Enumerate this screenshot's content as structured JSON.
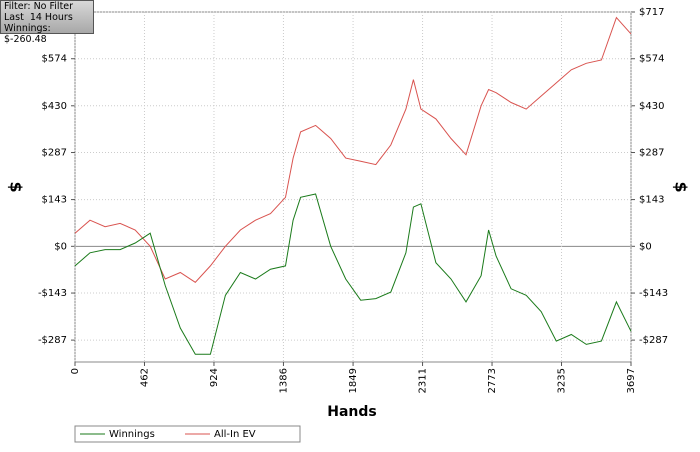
{
  "filter_box": {
    "lines": [
      "Filter: No Filter",
      "Last  14 Hours",
      "Winnings: $-260.48"
    ]
  },
  "chart_data": {
    "type": "line",
    "x_label": "Hands",
    "y_label": "$",
    "x": [
      0,
      100,
      200,
      300,
      400,
      500,
      600,
      700,
      800,
      900,
      1000,
      1100,
      1200,
      1300,
      1400,
      1450,
      1500,
      1600,
      1700,
      1800,
      1900,
      2000,
      2100,
      2200,
      2250,
      2300,
      2400,
      2500,
      2600,
      2700,
      2750,
      2800,
      2900,
      3000,
      3100,
      3200,
      3300,
      3400,
      3500,
      3600,
      3697
    ],
    "series": [
      {
        "name": "Winnings",
        "color": "#1a7a1a",
        "values": [
          -60,
          -20,
          -10,
          -10,
          10,
          40,
          -120,
          -250,
          -330,
          -330,
          -150,
          -80,
          -100,
          -70,
          -60,
          80,
          150,
          160,
          0,
          -100,
          -165,
          -160,
          -140,
          -20,
          120,
          130,
          -50,
          -100,
          -170,
          -90,
          50,
          -30,
          -130,
          -150,
          -200,
          -290,
          -270,
          -300,
          -290,
          -170,
          -260
        ]
      },
      {
        "name": "All-In EV",
        "color": "#d9534f",
        "values": [
          40,
          80,
          60,
          70,
          50,
          0,
          -100,
          -80,
          -110,
          -60,
          0,
          50,
          80,
          100,
          150,
          270,
          350,
          370,
          330,
          270,
          260,
          250,
          310,
          420,
          510,
          420,
          390,
          330,
          280,
          430,
          480,
          470,
          440,
          420,
          460,
          500,
          540,
          560,
          570,
          700,
          650
        ]
      }
    ],
    "xlim": [
      0,
      3697
    ],
    "ylim": [
      -354,
      717
    ],
    "xticks": [
      0,
      462,
      924,
      1386,
      1849,
      2311,
      2773,
      3235,
      3697
    ],
    "yticks": [
      {
        "value": -287,
        "label": "-$287"
      },
      {
        "value": -143,
        "label": "-$143"
      },
      {
        "value": 0,
        "label": "$0"
      },
      {
        "value": 143,
        "label": "$143"
      },
      {
        "value": 287,
        "label": "$287"
      },
      {
        "value": 430,
        "label": "$430"
      },
      {
        "value": 574,
        "label": "$574"
      },
      {
        "value": 717,
        "label": "$717"
      }
    ],
    "grid": true,
    "legend": "bottom-left"
  }
}
